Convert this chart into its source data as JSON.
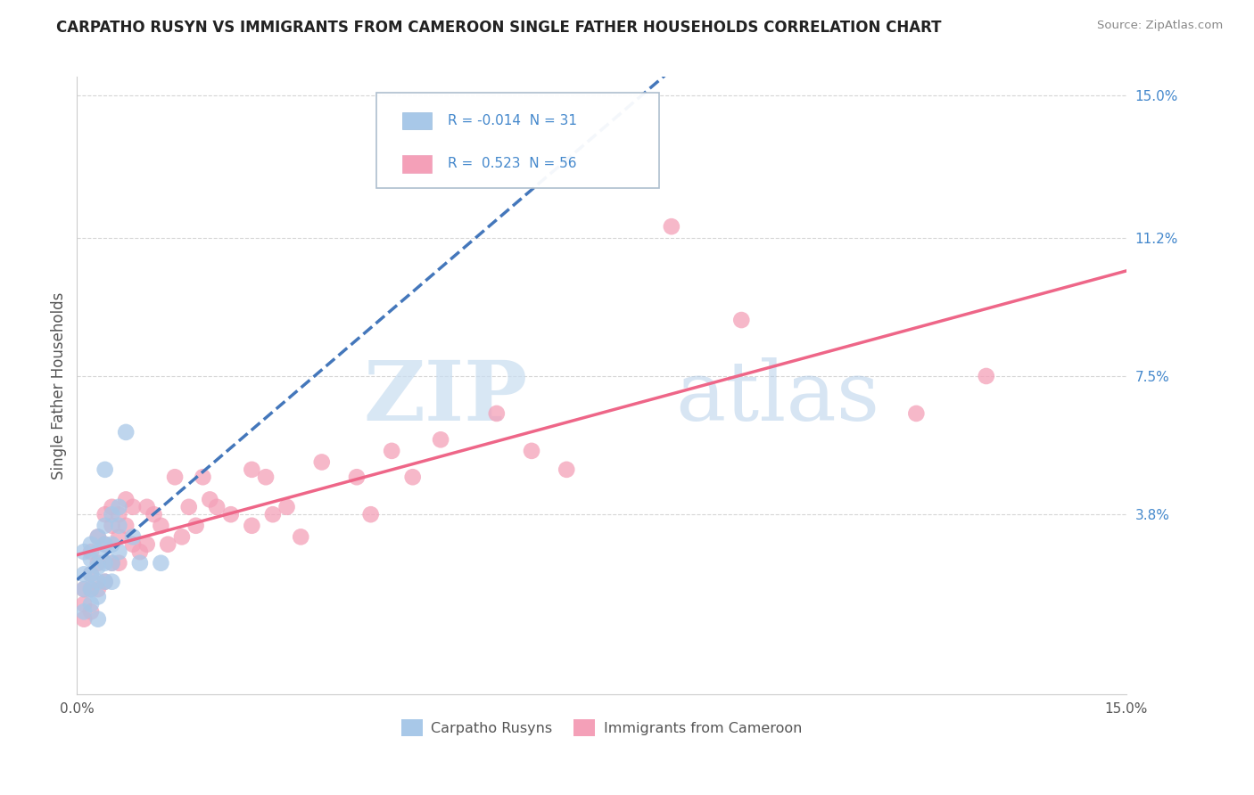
{
  "title": "CARPATHO RUSYN VS IMMIGRANTS FROM CAMEROON SINGLE FATHER HOUSEHOLDS CORRELATION CHART",
  "source": "Source: ZipAtlas.com",
  "ylabel": "Single Father Households",
  "xlim": [
    0.0,
    0.15
  ],
  "ylim": [
    -0.01,
    0.155
  ],
  "ytick_labels": [
    "3.8%",
    "7.5%",
    "11.2%",
    "15.0%"
  ],
  "ytick_values": [
    0.038,
    0.075,
    0.112,
    0.15
  ],
  "legend_label1": "Carpatho Rusyns",
  "legend_label2": "Immigrants from Cameroon",
  "r1": "-0.014",
  "n1": "31",
  "r2": "0.523",
  "n2": "56",
  "color1": "#a8c8e8",
  "color2": "#f4a0b8",
  "line_color1": "#4477bb",
  "line_color2": "#ee6688",
  "background_color": "#ffffff",
  "watermark_zip": "ZIP",
  "watermark_atlas": "atlas",
  "grid_color": "#cccccc",
  "scatter1_x": [
    0.001,
    0.001,
    0.001,
    0.001,
    0.002,
    0.002,
    0.002,
    0.002,
    0.002,
    0.003,
    0.003,
    0.003,
    0.003,
    0.003,
    0.003,
    0.004,
    0.004,
    0.004,
    0.004,
    0.004,
    0.005,
    0.005,
    0.005,
    0.005,
    0.006,
    0.006,
    0.006,
    0.007,
    0.008,
    0.009,
    0.012
  ],
  "scatter1_y": [
    0.028,
    0.022,
    0.018,
    0.012,
    0.03,
    0.026,
    0.022,
    0.018,
    0.014,
    0.032,
    0.028,
    0.024,
    0.02,
    0.016,
    0.01,
    0.035,
    0.03,
    0.025,
    0.02,
    0.05,
    0.038,
    0.03,
    0.025,
    0.02,
    0.04,
    0.035,
    0.028,
    0.06,
    0.032,
    0.025,
    0.025
  ],
  "scatter2_x": [
    0.001,
    0.001,
    0.001,
    0.002,
    0.002,
    0.002,
    0.002,
    0.003,
    0.003,
    0.003,
    0.004,
    0.004,
    0.004,
    0.005,
    0.005,
    0.005,
    0.006,
    0.006,
    0.006,
    0.007,
    0.007,
    0.008,
    0.008,
    0.009,
    0.01,
    0.01,
    0.011,
    0.012,
    0.013,
    0.014,
    0.015,
    0.016,
    0.017,
    0.018,
    0.019,
    0.02,
    0.022,
    0.025,
    0.025,
    0.027,
    0.028,
    0.03,
    0.032,
    0.035,
    0.04,
    0.042,
    0.045,
    0.048,
    0.052,
    0.06,
    0.065,
    0.07,
    0.085,
    0.095,
    0.12,
    0.13
  ],
  "scatter2_y": [
    0.018,
    0.014,
    0.01,
    0.028,
    0.022,
    0.018,
    0.012,
    0.032,
    0.025,
    0.018,
    0.038,
    0.03,
    0.02,
    0.04,
    0.035,
    0.025,
    0.038,
    0.032,
    0.025,
    0.042,
    0.035,
    0.04,
    0.03,
    0.028,
    0.04,
    0.03,
    0.038,
    0.035,
    0.03,
    0.048,
    0.032,
    0.04,
    0.035,
    0.048,
    0.042,
    0.04,
    0.038,
    0.05,
    0.035,
    0.048,
    0.038,
    0.04,
    0.032,
    0.052,
    0.048,
    0.038,
    0.055,
    0.048,
    0.058,
    0.065,
    0.055,
    0.05,
    0.115,
    0.09,
    0.065,
    0.075
  ]
}
